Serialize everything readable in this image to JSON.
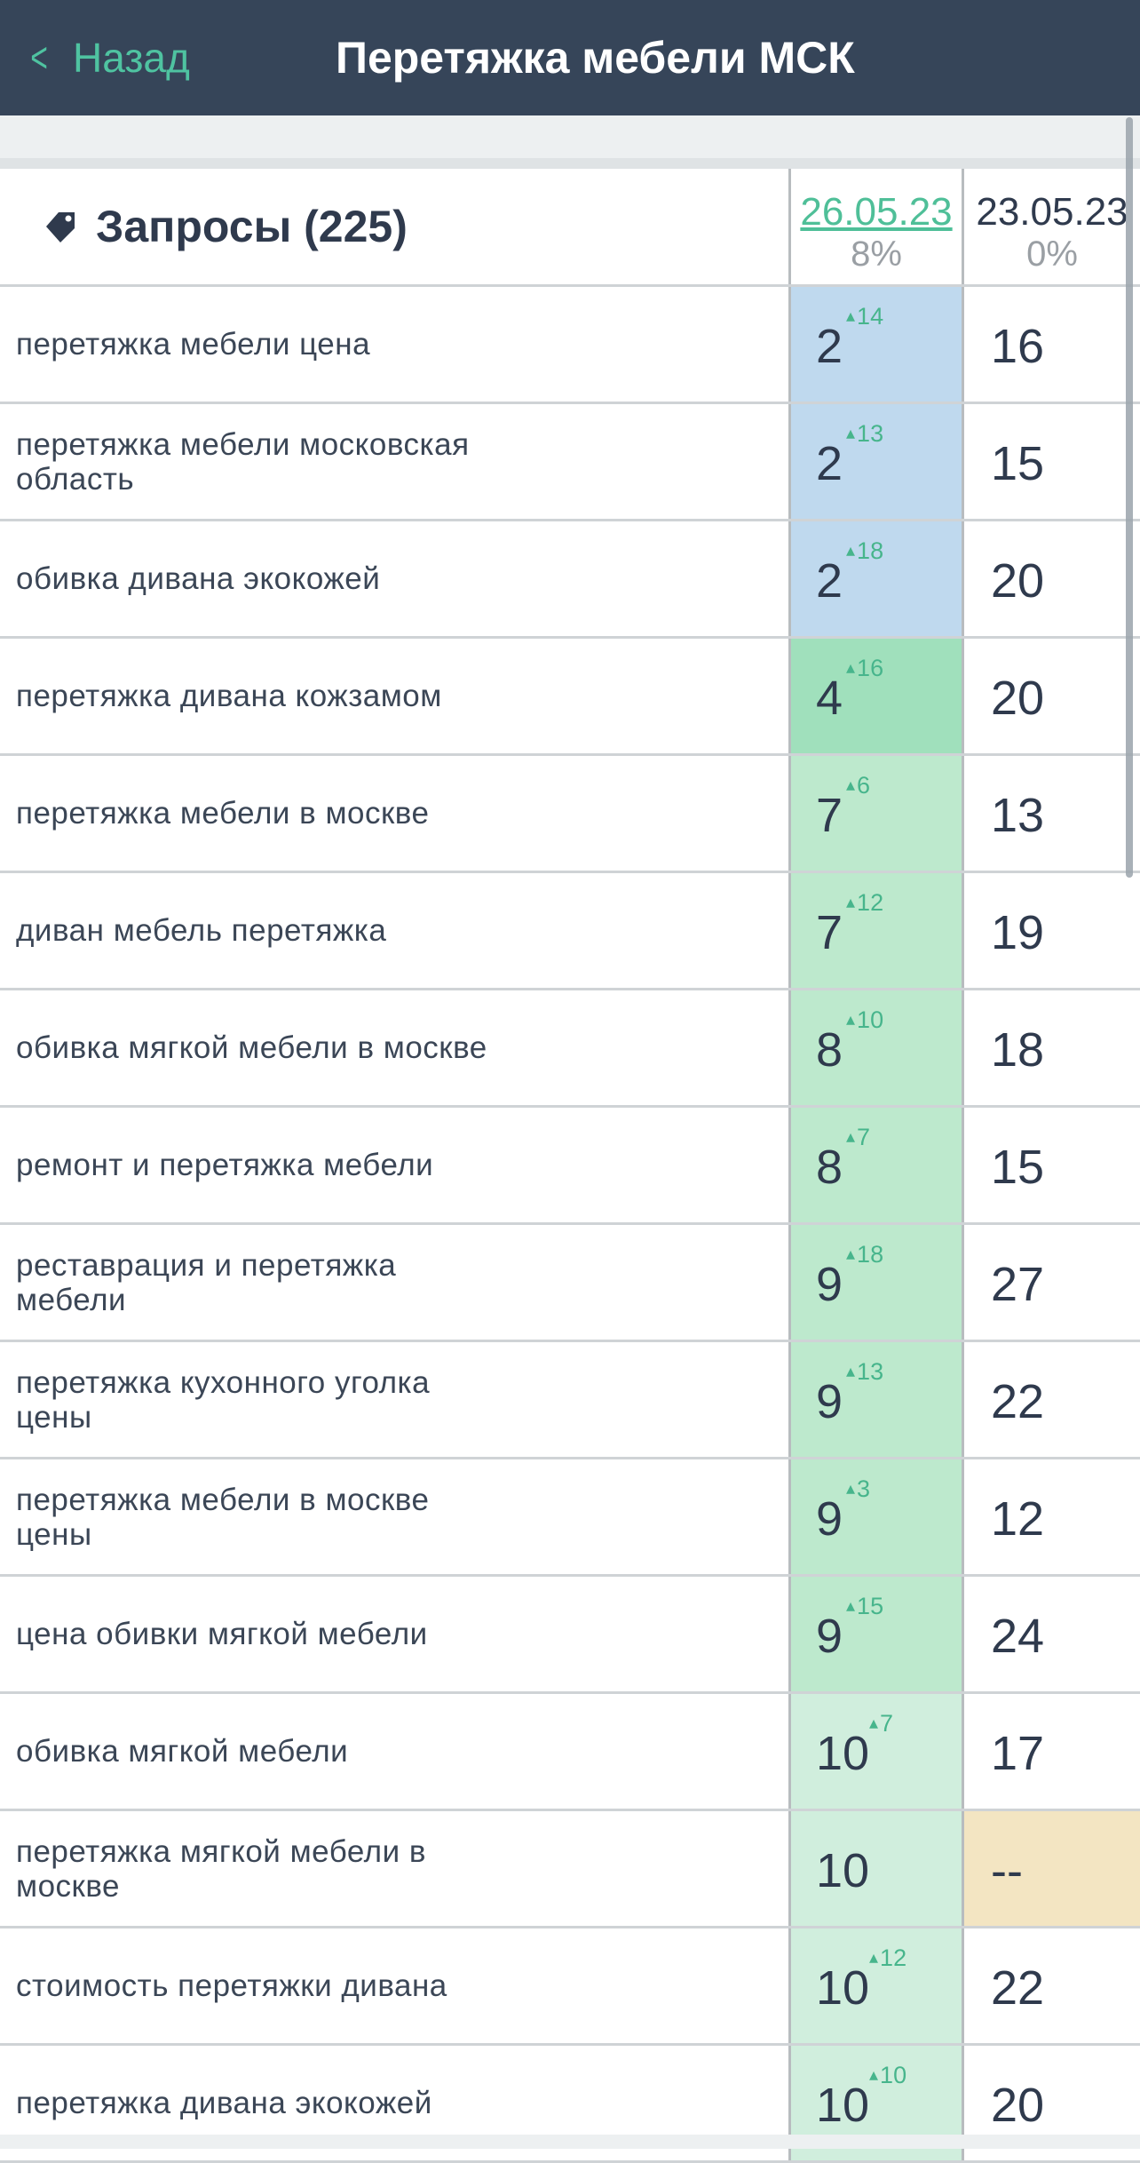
{
  "nav": {
    "back_label": "Назад",
    "title": "Перетяжка мебели МСК"
  },
  "colors": {
    "navbar": "#364559",
    "accent": "#4fc3a1",
    "top3": "#bfd9ee",
    "top10": "#bde9cd",
    "missing": "#f3e5c2"
  },
  "header": {
    "queries_label": "Запросы (225)",
    "icon": "tag-icon",
    "columns": [
      {
        "date": "26.05.23",
        "pct": "8%"
      },
      {
        "date": "23.05.23",
        "pct": "0%"
      }
    ]
  },
  "rows": [
    {
      "keyword": "перетяжка мебели цена",
      "pos": "2",
      "delta": "14",
      "prev": "16"
    },
    {
      "keyword": "перетяжка мебели московская область",
      "pos": "2",
      "delta": "13",
      "prev": "15"
    },
    {
      "keyword": "обивка дивана экокожей",
      "pos": "2",
      "delta": "18",
      "prev": "20"
    },
    {
      "keyword": "перетяжка дивана кожзамом",
      "pos": "4",
      "delta": "16",
      "prev": "20"
    },
    {
      "keyword": "перетяжка мебели в москве",
      "pos": "7",
      "delta": "6",
      "prev": "13"
    },
    {
      "keyword": "диван мебель перетяжка",
      "pos": "7",
      "delta": "12",
      "prev": "19"
    },
    {
      "keyword": "обивка мягкой мебели в москве",
      "pos": "8",
      "delta": "10",
      "prev": "18"
    },
    {
      "keyword": "ремонт и перетяжка мебели",
      "pos": "8",
      "delta": "7",
      "prev": "15"
    },
    {
      "keyword": "реставрация и перетяжка мебели",
      "pos": "9",
      "delta": "18",
      "prev": "27"
    },
    {
      "keyword": "перетяжка кухонного уголка цены",
      "pos": "9",
      "delta": "13",
      "prev": "22"
    },
    {
      "keyword": "перетяжка мебели в москве цены",
      "pos": "9",
      "delta": "3",
      "prev": "12"
    },
    {
      "keyword": "цена обивки мягкой мебели",
      "pos": "9",
      "delta": "15",
      "prev": "24"
    },
    {
      "keyword": "обивка мягкой мебели",
      "pos": "10",
      "delta": "7",
      "prev": "17"
    },
    {
      "keyword": "перетяжка мягкой мебели в москве",
      "pos": "10",
      "delta": "",
      "prev": "--"
    },
    {
      "keyword": "стоимость перетяжки дивана",
      "pos": "10",
      "delta": "12",
      "prev": "22"
    },
    {
      "keyword": "перетяжка дивана экокожей",
      "pos": "10",
      "delta": "10",
      "prev": "20"
    }
  ]
}
